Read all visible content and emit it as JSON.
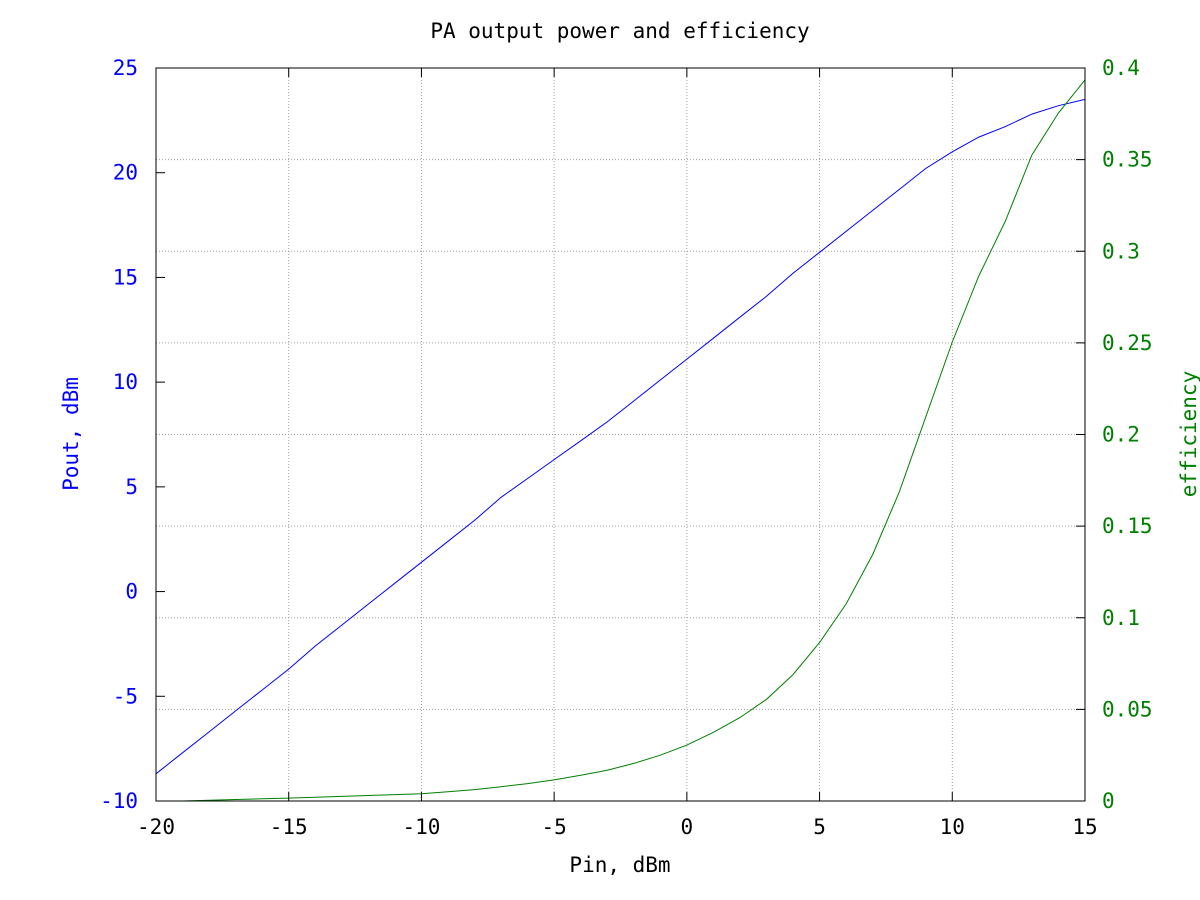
{
  "chart_data": {
    "type": "line",
    "title": "PA output power and efficiency",
    "xlabel": "Pin, dBm",
    "ylabel": "Pout, dBm",
    "y2label": "efficiency",
    "xlim": [
      -20,
      15
    ],
    "ylim": [
      -10,
      25
    ],
    "y2lim": [
      0,
      0.4
    ],
    "xticks": [
      "-20",
      "-15",
      "-10",
      "-5",
      "0",
      "5",
      "10",
      "15"
    ],
    "yticks": [
      "-10",
      "-5",
      "0",
      "5",
      "10",
      "15",
      "20",
      "25"
    ],
    "y2ticks": [
      "0",
      "0.05",
      "0.1",
      "0.15",
      "0.2",
      "0.25",
      "0.3",
      "0.35",
      "0.4"
    ],
    "grid": true,
    "colors": {
      "pout": "#0000ff",
      "efficiency": "#008000",
      "axes": "#000000",
      "grid": "#a0a0a0"
    },
    "x": [
      -20,
      -19,
      -18,
      -17,
      -16,
      -15,
      -14,
      -13,
      -12,
      -11,
      -10,
      -9,
      -8,
      -7,
      -6,
      -5,
      -4,
      -3,
      -2,
      -1,
      0,
      1,
      2,
      3,
      4,
      5,
      6,
      7,
      8,
      9,
      10,
      11,
      12,
      13,
      14,
      15
    ],
    "series": [
      {
        "axis": "left",
        "values": [
          -8.7,
          -7.7,
          -6.7,
          -5.7,
          -4.7,
          -3.7,
          -2.6,
          -1.6,
          -0.6,
          0.4,
          1.4,
          2.4,
          3.4,
          4.5,
          5.4,
          6.3,
          7.2,
          8.1,
          9.1,
          10.1,
          11.1,
          12.1,
          13.1,
          14.1,
          15.2,
          16.2,
          17.2,
          18.2,
          19.2,
          20.2,
          21.0,
          21.7,
          22.2,
          22.8,
          23.2,
          23.5
        ]
      },
      {
        "axis": "right",
        "values": [
          0.0,
          0.0,
          0.0004,
          0.0008,
          0.0012,
          0.0016,
          0.002,
          0.0025,
          0.003,
          0.0035,
          0.004,
          0.005,
          0.0062,
          0.0078,
          0.0095,
          0.0115,
          0.014,
          0.0168,
          0.0205,
          0.025,
          0.0305,
          0.0375,
          0.0455,
          0.0555,
          0.069,
          0.0865,
          0.1075,
          0.1345,
          0.1685,
          0.2095,
          0.2505,
          0.2865,
          0.3165,
          0.3525,
          0.3755,
          0.3935
        ]
      }
    ]
  }
}
